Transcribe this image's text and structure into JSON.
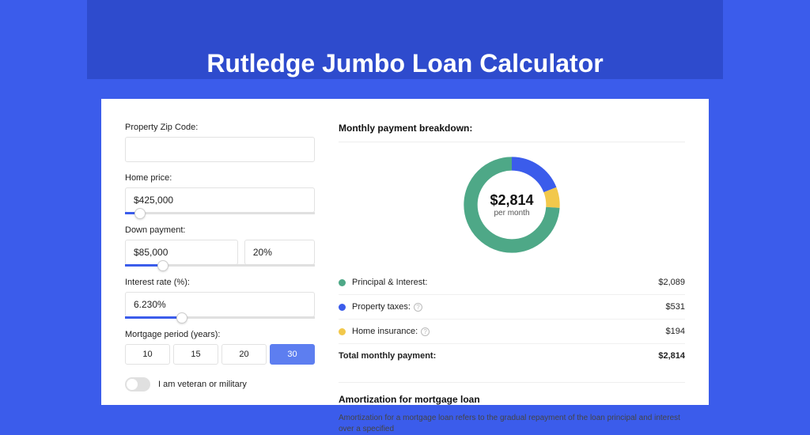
{
  "page": {
    "title": "Rutledge Jumbo Loan Calculator",
    "background_color": "#3b5ceb",
    "header_strip_color": "#2e4bcd"
  },
  "form": {
    "zip": {
      "label": "Property Zip Code:",
      "value": ""
    },
    "home_price": {
      "label": "Home price:",
      "value": "$425,000",
      "slider_pct": 8
    },
    "down_payment": {
      "label": "Down payment:",
      "amount": "$85,000",
      "percent": "20%",
      "slider_pct": 20
    },
    "interest_rate": {
      "label": "Interest rate (%):",
      "value": "6.230%",
      "slider_pct": 30
    },
    "mortgage_period": {
      "label": "Mortgage period (years):",
      "options": [
        "10",
        "15",
        "20",
        "30"
      ],
      "selected": "30"
    },
    "veteran": {
      "label": "I am veteran or military",
      "on": false
    }
  },
  "breakdown": {
    "title": "Monthly payment breakdown:",
    "center_amount": "$2,814",
    "center_sub": "per month",
    "items": [
      {
        "label": "Principal & Interest:",
        "value": "$2,089",
        "color": "#4ea887",
        "pct": 74,
        "info": false
      },
      {
        "label": "Property taxes:",
        "value": "$531",
        "color": "#3b5ceb",
        "pct": 19,
        "info": true
      },
      {
        "label": "Home insurance:",
        "value": "$194",
        "color": "#f2c84b",
        "pct": 7,
        "info": true
      }
    ],
    "total": {
      "label": "Total monthly payment:",
      "value": "$2,814"
    }
  },
  "amortization": {
    "title": "Amortization for mortgage loan",
    "text": "Amortization for a mortgage loan refers to the gradual repayment of the loan principal and interest over a specified"
  },
  "donut_style": {
    "stroke_width": 16,
    "radius": 48
  }
}
